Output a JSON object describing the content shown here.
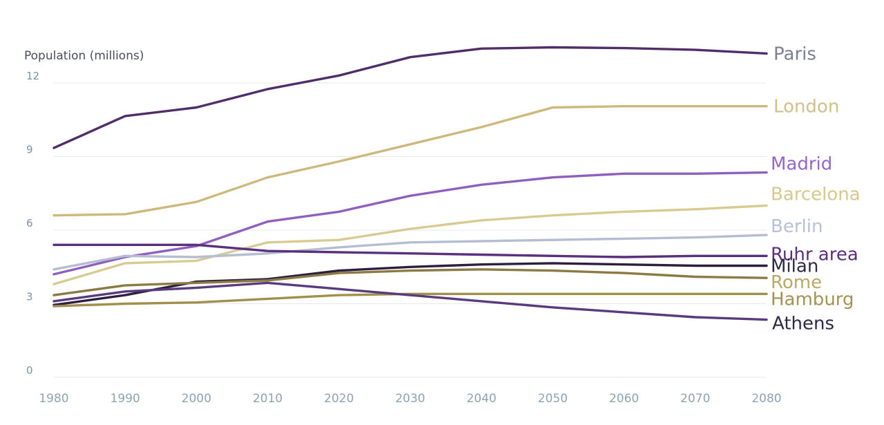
{
  "chart_data": {
    "type": "line",
    "ylabel": "Population (millions)",
    "xlabel": "",
    "x": [
      1980,
      1990,
      2000,
      2010,
      2020,
      2030,
      2040,
      2050,
      2060,
      2070,
      2080
    ],
    "x_tick_labels": [
      "1980",
      "1990",
      "2000",
      "2010",
      "2020",
      "2030",
      "2040",
      "2050",
      "2060",
      "2070",
      "2080"
    ],
    "y_ticks": [
      0,
      3,
      6,
      9,
      12
    ],
    "y_tick_labels": [
      "0",
      "3",
      "6",
      "9",
      "12"
    ],
    "xlim": [
      1980,
      2080
    ],
    "ylim": [
      0,
      12.6
    ],
    "grid": "horizontal",
    "legend": "direct labels at line ends",
    "series": [
      {
        "name": "Paris",
        "color": "#4f2d6b",
        "values": [
          9.35,
          10.65,
          11.0,
          11.75,
          12.3,
          13.05,
          13.4,
          13.45,
          13.42,
          13.35,
          13.2
        ]
      },
      {
        "name": "London",
        "color": "#cdb97c",
        "values": [
          6.6,
          6.65,
          7.15,
          8.15,
          8.8,
          9.5,
          10.2,
          11.0,
          11.05,
          11.05,
          11.05
        ]
      },
      {
        "name": "Madrid",
        "color": "#8f5fbf",
        "values": [
          4.2,
          4.9,
          5.35,
          6.35,
          6.75,
          7.4,
          7.85,
          8.15,
          8.3,
          8.3,
          8.35
        ]
      },
      {
        "name": "Barcelona",
        "color": "#d8cb92",
        "values": [
          3.8,
          4.65,
          4.75,
          5.5,
          5.6,
          6.05,
          6.4,
          6.6,
          6.75,
          6.85,
          7.0
        ]
      },
      {
        "name": "Berlin",
        "color": "#b5bdd0",
        "values": [
          4.4,
          4.95,
          4.9,
          5.05,
          5.3,
          5.5,
          5.55,
          5.6,
          5.65,
          5.7,
          5.8
        ]
      },
      {
        "name": "Ruhr area",
        "color": "#5a2f80",
        "values": [
          5.4,
          5.4,
          5.4,
          5.15,
          5.1,
          5.05,
          5.0,
          4.95,
          4.9,
          4.95,
          4.95
        ]
      },
      {
        "name": "Milan",
        "color": "#2c1f3e",
        "values": [
          2.95,
          3.35,
          3.9,
          4.0,
          4.35,
          4.5,
          4.6,
          4.65,
          4.6,
          4.55,
          4.55
        ]
      },
      {
        "name": "Rome",
        "color": "#8c7a44",
        "values": [
          3.35,
          3.75,
          3.85,
          3.95,
          4.25,
          4.35,
          4.4,
          4.35,
          4.25,
          4.1,
          4.05
        ]
      },
      {
        "name": "Hamburg",
        "color": "#a18f4d",
        "values": [
          2.9,
          3.0,
          3.05,
          3.2,
          3.35,
          3.4,
          3.4,
          3.4,
          3.4,
          3.4,
          3.4
        ]
      },
      {
        "name": "Athens",
        "color": "#5a3a7e",
        "values": [
          3.1,
          3.5,
          3.65,
          3.85,
          3.6,
          3.35,
          3.1,
          2.85,
          2.65,
          2.45,
          2.35
        ]
      }
    ],
    "label_colors": {
      "Paris": "#7c8190",
      "London": "#d2c08a",
      "Madrid": "#9866c8",
      "Barcelona": "#d6c98c",
      "Berlin": "#b8c1d3",
      "Ruhr area": "#5a2f80",
      "Milan": "#2d2947",
      "Rome": "#b9a866",
      "Hamburg": "#a39252",
      "Athens": "#2e2948"
    }
  }
}
